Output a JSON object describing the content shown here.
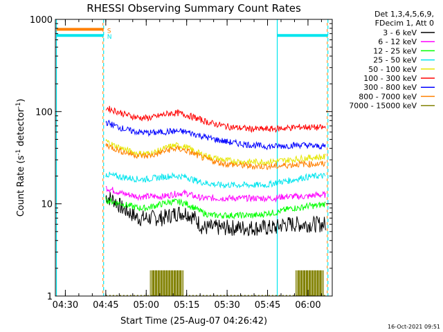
{
  "chart_data": {
    "type": "line",
    "title": "RHESSI Observing Summary Count Rates",
    "xlabel": "Start Time (25-Aug-07 04:26:42)",
    "ylabel_main": "Count Rate (s",
    "ylabel_sup1": "-1",
    "ylabel_mid": " detector",
    "ylabel_sup2": "-1",
    "ylabel_end": ")",
    "yscale": "log",
    "ylim": [
      1,
      1000
    ],
    "xlim_minutes": [
      -3.7,
      99
    ],
    "x_ticks": [
      {
        "label": "04:30",
        "min": 0
      },
      {
        "label": "04:45",
        "min": 15
      },
      {
        "label": "05:00",
        "min": 30
      },
      {
        "label": "05:15",
        "min": 45
      },
      {
        "label": "05:30",
        "min": 60
      },
      {
        "label": "05:45",
        "min": 75
      },
      {
        "label": "06:00",
        "min": 90
      }
    ],
    "y_ticks": [
      {
        "label": "1",
        "value": 1
      },
      {
        "label": "10",
        "value": 10
      },
      {
        "label": "100",
        "value": 100
      },
      {
        "label": "1000",
        "value": 1000
      }
    ],
    "legend_header": [
      "Det 1,3,4,5,6,9,",
      "FDecim 1, Att 0"
    ],
    "legend_position": "top-right",
    "timestamp": "16-Oct-2021 09:51",
    "flags": [
      {
        "label": "S",
        "color": "#ff8000",
        "value": 780,
        "segments": [
          [
            -3.3,
            14.2
          ]
        ]
      },
      {
        "label": "N",
        "color": "#00e5ee",
        "value": 670,
        "segments": [
          [
            -3.3,
            14.2
          ],
          [
            78.6,
            97.4
          ]
        ]
      }
    ],
    "night_lines": [
      {
        "x": -3.3,
        "color": "#00e5ee",
        "dashed": false
      },
      {
        "x": 14.2,
        "color": "#00e5ee",
        "dashed": true,
        "overlay": "#ff8000"
      },
      {
        "x": 78.6,
        "color": "#00e5ee",
        "dashed": false
      },
      {
        "x": 97.4,
        "color": "#00e5ee",
        "dashed": true,
        "overlay": "#ff8000"
      }
    ],
    "series": [
      {
        "name": "3 - 6 keV",
        "color": "#000000",
        "x": [
          15,
          18,
          21,
          24,
          27,
          30,
          33,
          36,
          39,
          42,
          45,
          48,
          51,
          54,
          57,
          60,
          63,
          66,
          69,
          72,
          75,
          78,
          81,
          84,
          87,
          90,
          93,
          96.5
        ],
        "y": [
          12,
          11,
          9,
          8,
          7,
          7,
          7,
          7,
          7.5,
          8,
          8,
          7,
          5.5,
          5.5,
          5.5,
          5.5,
          5.5,
          5.5,
          5.5,
          5.5,
          5.5,
          5.5,
          6,
          6,
          6,
          6,
          6,
          6
        ]
      },
      {
        "name": "6 - 12 keV",
        "color": "#ff00ff",
        "x": [
          15,
          18,
          21,
          24,
          27,
          30,
          33,
          36,
          39,
          42,
          45,
          48,
          51,
          54,
          57,
          60,
          63,
          66,
          69,
          72,
          75,
          78,
          81,
          84,
          87,
          90,
          93,
          96.5
        ],
        "y": [
          15,
          14,
          13,
          12.5,
          12,
          12,
          12,
          12,
          12.5,
          13,
          13,
          12,
          11.5,
          11.5,
          11.5,
          11.5,
          11.5,
          11.5,
          11.5,
          11.5,
          11.5,
          11.5,
          12,
          12,
          12,
          12,
          12.5,
          12.5
        ]
      },
      {
        "name": "12 - 25 keV",
        "color": "#00ff00",
        "x": [
          15,
          18,
          21,
          24,
          27,
          30,
          33,
          36,
          39,
          42,
          45,
          48,
          51,
          54,
          57,
          60,
          63,
          66,
          69,
          72,
          75,
          78,
          81,
          84,
          87,
          90,
          93,
          96.5
        ],
        "y": [
          11,
          10.5,
          10,
          9.5,
          9,
          9,
          9.5,
          10,
          10.5,
          10.5,
          10,
          9,
          8,
          7.5,
          7.5,
          7.5,
          7.5,
          7.5,
          7.5,
          7.5,
          8,
          8,
          8.5,
          9,
          9,
          9.5,
          9.5,
          10
        ]
      },
      {
        "name": "25 - 50 keV",
        "color": "#00e5ee",
        "x": [
          15,
          18,
          21,
          24,
          27,
          30,
          33,
          36,
          39,
          42,
          45,
          48,
          51,
          54,
          57,
          60,
          63,
          66,
          69,
          72,
          75,
          78,
          81,
          84,
          87,
          90,
          93,
          96.5
        ],
        "y": [
          21,
          20,
          19.5,
          19,
          18.5,
          18.5,
          19,
          19.5,
          20,
          20,
          19.5,
          18,
          17,
          16.5,
          16,
          16,
          16,
          16,
          16,
          16,
          16,
          17,
          17.5,
          18,
          19,
          19.5,
          20,
          20
        ]
      },
      {
        "name": "50 - 100 keV",
        "color": "#e6e600",
        "x": [
          15,
          18,
          21,
          24,
          27,
          30,
          33,
          36,
          39,
          42,
          45,
          48,
          51,
          54,
          57,
          60,
          63,
          66,
          69,
          72,
          75,
          78,
          81,
          84,
          87,
          90,
          93,
          96.5
        ],
        "y": [
          48,
          43,
          40,
          37,
          35,
          35,
          36,
          39,
          42,
          43,
          41,
          37,
          34,
          32,
          30.5,
          29.5,
          29,
          28.5,
          28.5,
          28.5,
          28.5,
          29,
          29.5,
          30,
          31,
          31.5,
          32,
          32
        ]
      },
      {
        "name": "100 - 300 keV",
        "color": "#ff0000",
        "x": [
          15,
          18,
          21,
          24,
          27,
          30,
          33,
          36,
          39,
          42,
          45,
          48,
          51,
          54,
          57,
          60,
          63,
          66,
          69,
          72,
          75,
          78,
          81,
          84,
          87,
          90,
          93,
          96.5
        ],
        "y": [
          110,
          103,
          96,
          90,
          86,
          85,
          87,
          92,
          96,
          96,
          92,
          86,
          80,
          75,
          72,
          69,
          67,
          66,
          65,
          64.5,
          64.5,
          65,
          66,
          67,
          68,
          68,
          67,
          67
        ]
      },
      {
        "name": "300 - 800 keV",
        "color": "#0000ff",
        "x": [
          15,
          18,
          21,
          24,
          27,
          30,
          33,
          36,
          39,
          42,
          45,
          48,
          51,
          54,
          57,
          60,
          63,
          66,
          69,
          72,
          75,
          78,
          81,
          84,
          87,
          90,
          93,
          96.5
        ],
        "y": [
          77,
          71,
          66,
          62,
          60,
          59,
          59,
          60,
          61,
          61,
          60,
          57,
          54,
          51,
          49,
          47,
          45.5,
          44.5,
          43.5,
          42.5,
          42,
          42,
          42.5,
          43,
          43.5,
          43,
          42,
          42
        ]
      },
      {
        "name": "800 - 7000 keV",
        "color": "#ff8000",
        "x": [
          15,
          18,
          21,
          24,
          27,
          30,
          33,
          36,
          39,
          42,
          45,
          48,
          51,
          54,
          57,
          60,
          63,
          66,
          69,
          72,
          75,
          78,
          81,
          84,
          87,
          90,
          93,
          96.5
        ],
        "y": [
          44,
          40,
          37,
          35,
          33.5,
          33,
          34,
          36.5,
          39,
          39.5,
          37.5,
          34.5,
          31.5,
          29.5,
          28,
          27,
          26.5,
          26,
          25.5,
          25.5,
          25.5,
          25.5,
          26,
          26.5,
          27,
          27,
          27,
          27
        ]
      },
      {
        "name": "7000 - 15000 keV",
        "color": "#808000",
        "x": [
          15,
          25,
          31.5,
          32.5,
          33.5,
          34.5,
          35.5,
          36.5,
          37.5,
          38.5,
          39.5,
          40.5,
          41.5,
          42.5,
          50,
          60,
          70,
          85.5,
          86.5,
          87.5,
          88.5,
          89.5,
          90.5,
          91.5,
          92.5,
          93.5,
          94.5,
          97
        ],
        "y": [
          1,
          1,
          1.9,
          1.9,
          1.9,
          1.9,
          1.9,
          1.9,
          1.9,
          1.9,
          1.9,
          1.9,
          1.9,
          1.9,
          1,
          1,
          1,
          1.9,
          1.9,
          1.9,
          1.9,
          1.9,
          1.9,
          1.9,
          1.9,
          1.9,
          1.9,
          1
        ]
      }
    ]
  }
}
